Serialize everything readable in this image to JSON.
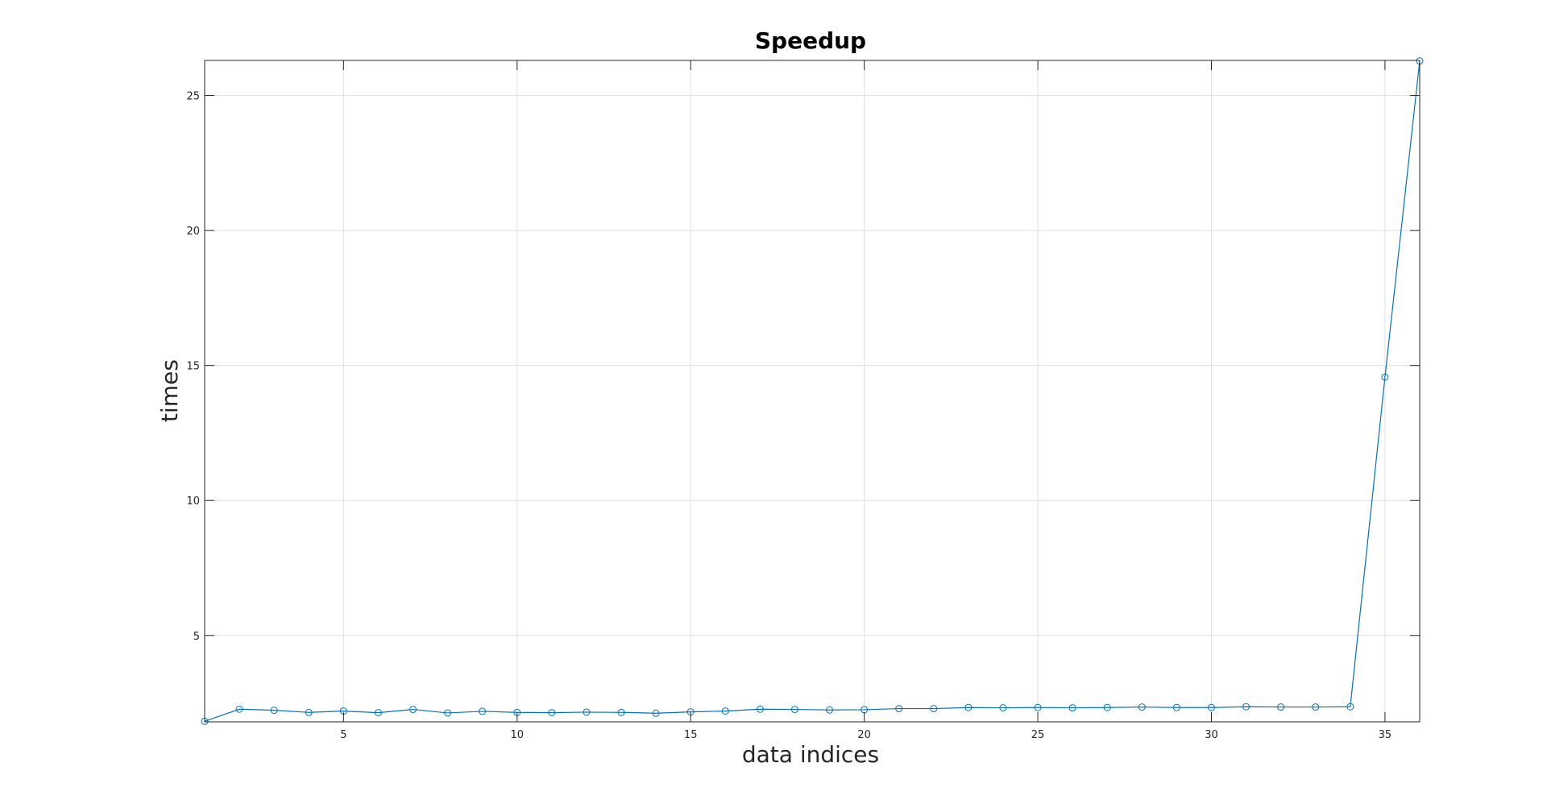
{
  "chart_data": {
    "type": "line",
    "title": "Speedup",
    "xlabel": "data indices",
    "ylabel": "times",
    "xlim": [
      1,
      36
    ],
    "ylim": [
      1.8,
      26.3
    ],
    "xticks": [
      5,
      10,
      15,
      20,
      25,
      30,
      35
    ],
    "yticks": [
      5,
      10,
      15,
      20,
      25
    ],
    "grid": true,
    "marker": "circle",
    "line_color": "#0072BD",
    "x": [
      1,
      2,
      3,
      4,
      5,
      6,
      7,
      8,
      9,
      10,
      11,
      12,
      13,
      14,
      15,
      16,
      17,
      18,
      19,
      20,
      21,
      22,
      23,
      24,
      25,
      26,
      27,
      28,
      29,
      30,
      31,
      32,
      33,
      34,
      35,
      36
    ],
    "series": [
      {
        "values": [
          1.82,
          2.27,
          2.23,
          2.15,
          2.2,
          2.14,
          2.26,
          2.13,
          2.19,
          2.15,
          2.14,
          2.16,
          2.15,
          2.12,
          2.17,
          2.2,
          2.27,
          2.26,
          2.24,
          2.25,
          2.29,
          2.29,
          2.33,
          2.32,
          2.33,
          2.32,
          2.33,
          2.35,
          2.33,
          2.33,
          2.36,
          2.35,
          2.35,
          2.36,
          14.57,
          26.28
        ]
      }
    ]
  }
}
